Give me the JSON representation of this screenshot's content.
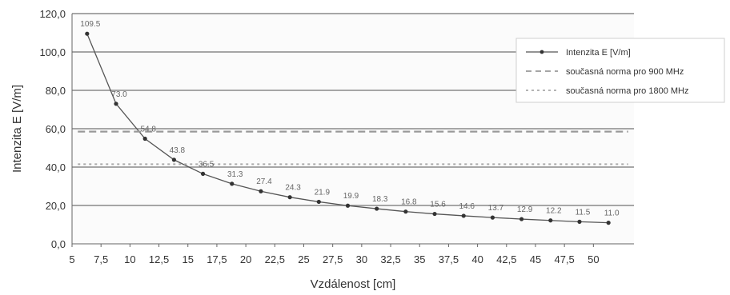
{
  "chart_data": {
    "type": "line",
    "title": "",
    "xlabel": "Vzdálenost [cm]",
    "ylabel": "Intenzita E [V/m]",
    "xlim": [
      5,
      53.5
    ],
    "ylim": [
      0,
      120
    ],
    "x_ticks": [
      "5",
      "7,5",
      "10",
      "12,5",
      "15",
      "17,5",
      "20",
      "22,5",
      "25",
      "27,5",
      "30",
      "32,5",
      "35",
      "37,5",
      "40",
      "42,5",
      "45",
      "47,5",
      "50"
    ],
    "x_tick_values": [
      5,
      7.5,
      10,
      12.5,
      15,
      17.5,
      20,
      22.5,
      25,
      27.5,
      30,
      32.5,
      35,
      37.5,
      40,
      42.5,
      45,
      47.5,
      50
    ],
    "y_ticks": [
      "0,0",
      "20,0",
      "40,0",
      "60,0",
      "80,0",
      "100,0",
      "120,0"
    ],
    "y_tick_values": [
      0,
      20,
      40,
      60,
      80,
      100,
      120
    ],
    "grid": true,
    "legend_position": "top-right",
    "series": [
      {
        "name": "Intenzita E [V/m]",
        "style": "solid-markers",
        "color": "#555555",
        "x": [
          6.3,
          8.8,
          11.3,
          13.8,
          16.3,
          18.8,
          21.3,
          23.8,
          26.3,
          28.8,
          31.3,
          33.8,
          36.3,
          38.8,
          41.3,
          43.8,
          46.3,
          48.8,
          51.3
        ],
        "y": [
          109.5,
          73.0,
          54.8,
          43.8,
          36.5,
          31.3,
          27.4,
          24.3,
          21.9,
          19.9,
          18.3,
          16.8,
          15.6,
          14.6,
          13.7,
          12.9,
          12.2,
          11.5,
          11.0
        ],
        "labels": [
          "109.5",
          "73.0",
          "54.8",
          "43.8",
          "36.5",
          "31.3",
          "27.4",
          "24.3",
          "21.9",
          "19.9",
          "18.3",
          "16.8",
          "15.6",
          "14.6",
          "13.7",
          "12.9",
          "12.2",
          "11.5",
          "11.0"
        ]
      },
      {
        "name": "současná norma pro 900 MHz",
        "style": "dashed",
        "color": "#999999",
        "x": [
          5.5,
          53
        ],
        "y": [
          58.5,
          58.5
        ]
      },
      {
        "name": "současná norma pro 1800 MHz",
        "style": "dotted-x",
        "color": "#aaaaaa",
        "x": [
          5.5,
          53
        ],
        "y": [
          41.5,
          41.5
        ]
      }
    ]
  }
}
